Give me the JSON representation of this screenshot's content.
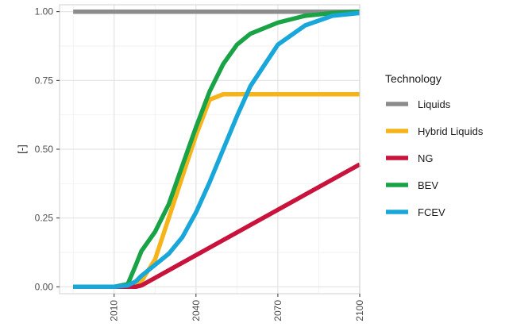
{
  "chart_data": {
    "type": "line",
    "ylabel": "[-]",
    "xlabel": "",
    "xlim": [
      1990,
      2100
    ],
    "ylim": [
      -0.025,
      1.025
    ],
    "x_ticks": [
      2010,
      2040,
      2070,
      2100
    ],
    "x_tick_labels": [
      "2010",
      "2040",
      "2070",
      "2100"
    ],
    "x_minor_ticks": [
      1995,
      2025,
      2055,
      2085
    ],
    "y_ticks": [
      0,
      0.25,
      0.5,
      0.75,
      1.0
    ],
    "y_tick_labels": [
      "0.00",
      "0.25",
      "0.50",
      "0.75",
      "1.00"
    ],
    "y_minor_ticks": [
      0.125,
      0.375,
      0.625,
      0.875
    ],
    "grid": true,
    "legend": {
      "title": "Technology",
      "position": "right"
    },
    "series": [
      {
        "name": "Liquids",
        "color": "#8c8c8c",
        "x": [
          1995,
          2100
        ],
        "y": [
          1.0,
          1.0
        ]
      },
      {
        "name": "Hybrid Liquids",
        "color": "#f4b41a",
        "x": [
          1995,
          2015,
          2020,
          2025,
          2030,
          2035,
          2040,
          2045,
          2050,
          2100
        ],
        "y": [
          0,
          0,
          0.02,
          0.1,
          0.25,
          0.4,
          0.55,
          0.68,
          0.7,
          0.7
        ]
      },
      {
        "name": "NG",
        "color": "#c8143c",
        "x": [
          1995,
          2018,
          2020,
          2100
        ],
        "y": [
          0,
          0,
          0.005,
          0.445
        ]
      },
      {
        "name": "BEV",
        "color": "#1aa346",
        "x": [
          1995,
          2010,
          2015,
          2018,
          2020,
          2025,
          2030,
          2035,
          2040,
          2045,
          2050,
          2055,
          2060,
          2070,
          2080,
          2090,
          2100
        ],
        "y": [
          0,
          0,
          0.01,
          0.08,
          0.13,
          0.2,
          0.3,
          0.44,
          0.58,
          0.71,
          0.81,
          0.88,
          0.92,
          0.96,
          0.985,
          0.995,
          1.0
        ]
      },
      {
        "name": "FCEV",
        "color": "#19a6d9",
        "x": [
          1995,
          2010,
          2015,
          2018,
          2020,
          2025,
          2030,
          2035,
          2040,
          2045,
          2050,
          2055,
          2060,
          2070,
          2080,
          2090,
          2100
        ],
        "y": [
          0,
          0,
          0.005,
          0.02,
          0.04,
          0.08,
          0.12,
          0.18,
          0.27,
          0.38,
          0.5,
          0.62,
          0.73,
          0.88,
          0.95,
          0.985,
          0.995
        ]
      }
    ]
  }
}
